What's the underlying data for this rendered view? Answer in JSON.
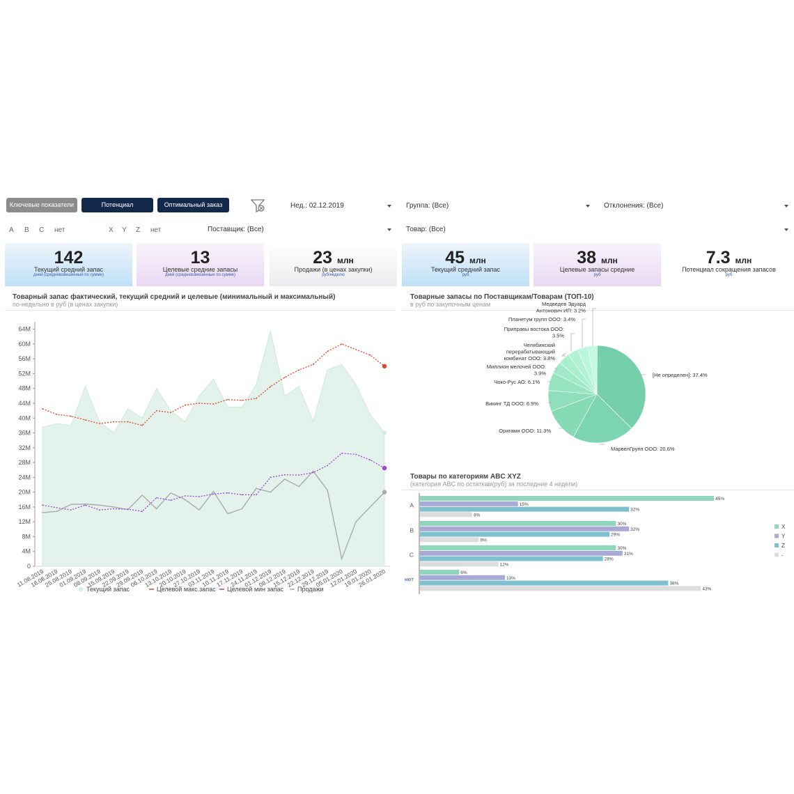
{
  "toolbar": {
    "key_indicators": "Ключевые показатели",
    "potential": "Потенциал",
    "optimal_order": "Оптимальный заказ"
  },
  "filters": {
    "week": "Нед.: 02.12.2019",
    "group": "Группа: (Все)",
    "deviations": "Отклонения: (Все)",
    "supplier": "Поставщик: (Все)",
    "product": "Товар: (Все)",
    "abc": [
      "A",
      "B",
      "C",
      "нет"
    ],
    "xyz": [
      "X",
      "Y",
      "Z",
      "нет"
    ]
  },
  "kpis": [
    {
      "value": "142",
      "unit": "",
      "label": "Текущий средний запас",
      "sub": "дней (средневзвешенный по сумме)"
    },
    {
      "value": "13",
      "unit": "",
      "label": "Целевые средние запасы",
      "sub": "дней (средневзвешенные по сумме)"
    },
    {
      "value": "23",
      "unit": "млн",
      "label": "Продажи (в ценах закупки)",
      "sub": "руб/неделю"
    },
    {
      "value": "45",
      "unit": "млн",
      "label": "Текущий средний запас",
      "sub": "руб"
    },
    {
      "value": "38",
      "unit": "млн",
      "label": "Целевые запасы средние",
      "sub": "руб"
    },
    {
      "value": "7.3",
      "unit": "млн",
      "label": "Потенциал сокращения запасов",
      "sub": "руб"
    }
  ],
  "line_panel": {
    "title": "Товарный запас фактический, текущий средний и целевые (минимальный и максимальный)",
    "subtitle": "по-недельно в руб (в ценах закупки)"
  },
  "pie_panel": {
    "title": "Товарные запасы по Поставщикам/Товарам (ТОП-10)",
    "subtitle": "в руб по закупочным ценам"
  },
  "bar_panel": {
    "title": "Товары по категориям ABC XYZ",
    "subtitle": "(категория ABC по остаткам(руб) за последние 4 недели)"
  },
  "colors": {
    "navy": "#13294b",
    "area": "#e3f3ec",
    "area_line": "#cfe9dc",
    "max": "#e0472b",
    "min": "#a146cf",
    "sales": "#aaaaaa",
    "pie": "#7fd6b2",
    "X": "#8fd6bc",
    "Y": "#a9a9d6",
    "Z": "#7fc0cf",
    "none": "#dddddd"
  },
  "chart_data": [
    {
      "type": "line",
      "x": [
        "11.08.2019",
        "18.08.2019",
        "25.08.2019",
        "01.09.2019",
        "08.09.2019",
        "15.09.2019",
        "22.09.2019",
        "29.09.2019",
        "06.10.2019",
        "13.10.2019",
        "20.10.2019",
        "27.10.2019",
        "03.11.2019",
        "10.11.2019",
        "17.11.2019",
        "24.11.2019",
        "01.12.2019",
        "08.12.2019",
        "15.12.2019",
        "22.12.2019",
        "29.12.2019",
        "05.01.2020",
        "12.01.2020",
        "19.01.2020",
        "26.01.2020"
      ],
      "yticks": [
        "0",
        "4M",
        "8M",
        "12M",
        "16M",
        "20M",
        "24M",
        "28M",
        "32M",
        "36M",
        "40M",
        "44M",
        "48M",
        "52M",
        "56M",
        "60M",
        "64M"
      ],
      "ylim": [
        0,
        66000000
      ],
      "series": [
        {
          "name": "Текущий запас",
          "kind": "area",
          "values": [
            37500000,
            38500000,
            38000000,
            48500000,
            39000000,
            36000000,
            42500000,
            40000000,
            48000000,
            42000000,
            39000000,
            46000000,
            50500000,
            43000000,
            43000000,
            49000000,
            63500000,
            46000000,
            48500000,
            39000000,
            53000000,
            54500000,
            49000000,
            41000000,
            36000000
          ]
        },
        {
          "name": "Целевой макс.запас",
          "kind": "dotted",
          "values": [
            42500000,
            41000000,
            40500000,
            39500000,
            38500000,
            39000000,
            39000000,
            38000000,
            42000000,
            41500000,
            43500000,
            44000000,
            43800000,
            45000000,
            44800000,
            45300000,
            48500000,
            51000000,
            53000000,
            54500000,
            58000000,
            60000000,
            58500000,
            57000000,
            54000000
          ]
        },
        {
          "name": "Целевой мин запас",
          "kind": "dotted",
          "values": [
            16500000,
            15800000,
            15200000,
            16500000,
            15200000,
            15500000,
            15400000,
            14800000,
            18500000,
            17800000,
            19000000,
            18800000,
            19500000,
            19800000,
            19300000,
            19300000,
            24000000,
            24700000,
            24600000,
            25300000,
            27200000,
            30500000,
            30200000,
            28700000,
            26500000
          ]
        },
        {
          "name": "Продажи",
          "kind": "line",
          "values": [
            14500000,
            14800000,
            16700000,
            16800000,
            16500000,
            16000000,
            15300000,
            19200000,
            15500000,
            19800000,
            18000000,
            15200000,
            20200000,
            14200000,
            15500000,
            21000000,
            20000000,
            23500000,
            21500000,
            25700000,
            20500000,
            2000000,
            12000000,
            16000000,
            20000000
          ]
        }
      ]
    },
    {
      "type": "pie",
      "slices": [
        {
          "label": "[Не определен]: 37.4%",
          "value": 37.4
        },
        {
          "label": "МарвелГрупп ООО: 20.6%",
          "value": 20.6
        },
        {
          "label": "Оригами ООО: 11.3%",
          "value": 11.3
        },
        {
          "label": "Викинг ТД ООО: 6.9%",
          "value": 6.9
        },
        {
          "label": "Чоко-Рус АО: 6.1%",
          "value": 6.1
        },
        {
          "label": "Миллион мелочей ООО: 3.9%",
          "value": 3.9
        },
        {
          "label": "Челябинский перерабатывающий комбинат ООО: 3.8%",
          "value": 3.8
        },
        {
          "label": "Приправы востока ООО: 3.5%",
          "value": 3.5
        },
        {
          "label": "Планетум групп ООО: 3.4%",
          "value": 3.4
        },
        {
          "label": "Медведев Эдуард Антонович ИП: 3.2%",
          "value": 3.2
        }
      ]
    },
    {
      "type": "bar",
      "categories": [
        "A",
        "B",
        "C",
        "нет"
      ],
      "legend": [
        "X",
        "Y",
        "Z",
        "-"
      ],
      "series": [
        {
          "name": "X",
          "values": [
            45,
            30,
            30,
            6
          ]
        },
        {
          "name": "Y",
          "values": [
            15,
            32,
            31,
            13
          ]
        },
        {
          "name": "Z",
          "values": [
            32,
            29,
            28,
            38
          ]
        },
        {
          "name": "-",
          "values": [
            8,
            9,
            12,
            43
          ]
        }
      ]
    }
  ]
}
